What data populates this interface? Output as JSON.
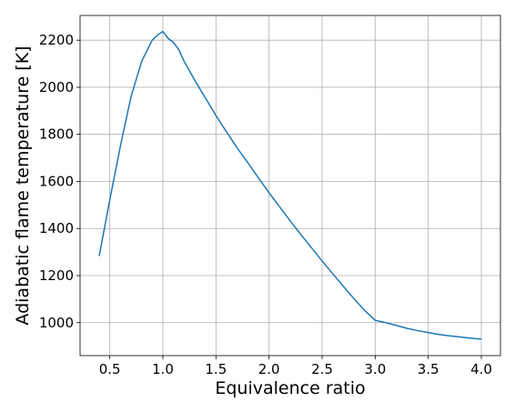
{
  "chart_data": {
    "type": "line",
    "title": "",
    "xlabel": "Equivalence ratio",
    "ylabel": "Adiabatic flame temperature [K]",
    "xlim": [
      0.22,
      4.18
    ],
    "ylim": [
      860,
      2305
    ],
    "xticks": [
      0.5,
      1.0,
      1.5,
      2.0,
      2.5,
      3.0,
      3.5,
      4.0
    ],
    "xtick_labels": [
      "0.5",
      "1.0",
      "1.5",
      "2.0",
      "2.5",
      "3.0",
      "3.5",
      "4.0"
    ],
    "yticks": [
      1000,
      1200,
      1400,
      1600,
      1800,
      2000,
      2200
    ],
    "ytick_labels": [
      "1000",
      "1200",
      "1400",
      "1600",
      "1800",
      "2000",
      "2200"
    ],
    "grid": true,
    "colors": {
      "series": "#1f77b4",
      "grid": "#b0b0b0"
    },
    "series": [
      {
        "x": [
          0.4,
          0.5,
          0.6,
          0.7,
          0.8,
          0.9,
          0.95,
          1.0,
          1.05,
          1.1,
          1.15,
          1.2,
          1.3,
          1.4,
          1.5,
          1.6,
          1.7,
          1.8,
          1.9,
          2.0,
          2.1,
          2.2,
          2.3,
          2.4,
          2.5,
          2.6,
          2.7,
          2.8,
          2.9,
          3.0,
          3.05,
          3.1,
          3.2,
          3.3,
          3.4,
          3.5,
          3.6,
          3.7,
          3.8,
          3.9,
          4.0
        ],
        "values": [
          1283,
          1522,
          1750,
          1960,
          2110,
          2200,
          2222,
          2237,
          2208,
          2190,
          2160,
          2110,
          2030,
          1955,
          1880,
          1810,
          1742,
          1680,
          1615,
          1552,
          1492,
          1432,
          1374,
          1318,
          1262,
          1208,
          1154,
          1102,
          1052,
          1010,
          1005,
          1000,
          988,
          976,
          966,
          958,
          950,
          944,
          939,
          934,
          930
        ]
      }
    ]
  }
}
